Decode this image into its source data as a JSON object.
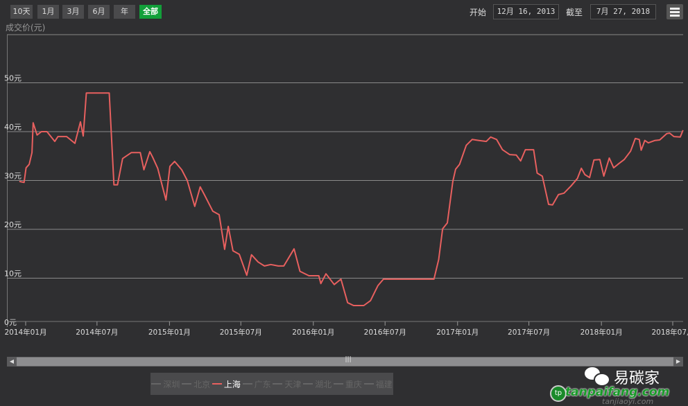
{
  "toolbar": {
    "range_buttons": [
      {
        "label": "10天"
      },
      {
        "label": "1月"
      },
      {
        "label": "3月"
      },
      {
        "label": "6月"
      },
      {
        "label": "年"
      },
      {
        "label": "全部",
        "active": true
      }
    ],
    "start_label": "开始",
    "start_value": "12月 16, 2013",
    "end_label": "截至",
    "end_value": "7月 27, 2018",
    "menu_icon": "hamburger-menu-icon"
  },
  "legend": [
    {
      "label": "深圳",
      "visible": false
    },
    {
      "label": "北京",
      "visible": false
    },
    {
      "label": "上海",
      "visible": true
    },
    {
      "label": "广东",
      "visible": false
    },
    {
      "label": "天津",
      "visible": false
    },
    {
      "label": "湖北",
      "visible": false
    },
    {
      "label": "重庆",
      "visible": false
    },
    {
      "label": "福建",
      "visible": false
    }
  ],
  "watermark": {
    "brand": "易碳家",
    "site": "tanpaifang.com",
    "site2": "tanjiaoyi.com"
  },
  "colors": {
    "series": "#e8605f",
    "active_button": "#12a03a",
    "background": "#2f2f31"
  },
  "chart_data": {
    "type": "line",
    "ylabel": "成交价(元)",
    "ylim": [
      0,
      55
    ],
    "yticks": [
      "0元",
      "10元",
      "20元",
      "30元",
      "40元",
      "50元"
    ],
    "xticks": [
      "2014年01月",
      "2014年07月",
      "2015年01月",
      "2015年07月",
      "2016年01月",
      "2016年07月",
      "2017年01月",
      "2017年07月",
      "2018年01月",
      "2018年07月"
    ],
    "grid": true,
    "legend_position": "bottom",
    "series": [
      {
        "name": "上海",
        "points": [
          [
            "2013-12-16",
            29.8
          ],
          [
            "2013-12-28",
            29.6
          ],
          [
            "2014-01-02",
            32.6
          ],
          [
            "2014-01-10",
            33.3
          ],
          [
            "2014-01-17",
            35.7
          ],
          [
            "2014-01-20",
            41.8
          ],
          [
            "2014-01-30",
            39.3
          ],
          [
            "2014-02-10",
            40
          ],
          [
            "2014-02-24",
            40
          ],
          [
            "2014-03-07",
            38.9
          ],
          [
            "2014-03-16",
            38
          ],
          [
            "2014-03-24",
            39
          ],
          [
            "2014-04-15",
            39
          ],
          [
            "2014-05-06",
            37.6
          ],
          [
            "2014-05-20",
            42
          ],
          [
            "2014-05-27",
            39.1
          ],
          [
            "2014-06-04",
            47.9
          ],
          [
            "2014-08-01",
            47.9
          ],
          [
            "2014-08-13",
            29.1
          ],
          [
            "2014-08-22",
            29.1
          ],
          [
            "2014-09-04",
            34.5
          ],
          [
            "2014-09-26",
            35.7
          ],
          [
            "2014-10-19",
            35.7
          ],
          [
            "2014-10-28",
            32.2
          ],
          [
            "2014-11-12",
            35.9
          ],
          [
            "2014-11-19",
            34.8
          ],
          [
            "2014-12-02",
            32.5
          ],
          [
            "2014-12-23",
            26
          ],
          [
            "2015-01-02",
            32.9
          ],
          [
            "2015-01-14",
            33.9
          ],
          [
            "2015-02-01",
            32.2
          ],
          [
            "2015-02-15",
            30
          ],
          [
            "2015-03-06",
            24.7
          ],
          [
            "2015-03-20",
            28.7
          ],
          [
            "2015-03-31",
            27
          ],
          [
            "2015-04-21",
            23.7
          ],
          [
            "2015-05-07",
            23
          ],
          [
            "2015-05-21",
            15.9
          ],
          [
            "2015-05-30",
            20.6
          ],
          [
            "2015-06-11",
            15.6
          ],
          [
            "2015-06-27",
            14.9
          ],
          [
            "2015-07-16",
            10.6
          ],
          [
            "2015-07-28",
            14.8
          ],
          [
            "2015-08-14",
            13.3
          ],
          [
            "2015-08-30",
            12.5
          ],
          [
            "2015-09-15",
            12.8
          ],
          [
            "2015-10-04",
            12.5
          ],
          [
            "2015-10-18",
            12.5
          ],
          [
            "2015-11-13",
            16
          ],
          [
            "2015-11-28",
            11.4
          ],
          [
            "2015-12-21",
            10.5
          ],
          [
            "2016-01-15",
            10.5
          ],
          [
            "2016-01-20",
            8.9
          ],
          [
            "2016-02-02",
            10.9
          ],
          [
            "2016-02-23",
            8.7
          ],
          [
            "2016-03-11",
            9.8
          ],
          [
            "2016-03-28",
            5
          ],
          [
            "2016-04-12",
            4.4
          ],
          [
            "2016-05-08",
            4.4
          ],
          [
            "2016-05-25",
            5.4
          ],
          [
            "2016-06-13",
            8.5
          ],
          [
            "2016-06-27",
            9.8
          ],
          [
            "2016-11-02",
            9.8
          ],
          [
            "2016-11-14",
            13.8
          ],
          [
            "2016-11-24",
            20.1
          ],
          [
            "2016-12-06",
            21.3
          ],
          [
            "2016-12-20",
            29.8
          ],
          [
            "2016-12-27",
            32.3
          ],
          [
            "2017-01-06",
            33.3
          ],
          [
            "2017-01-23",
            37.2
          ],
          [
            "2017-02-07",
            38.4
          ],
          [
            "2017-02-24",
            38.2
          ],
          [
            "2017-03-15",
            38
          ],
          [
            "2017-03-26",
            38.9
          ],
          [
            "2017-04-10",
            38.4
          ],
          [
            "2017-04-25",
            36.3
          ],
          [
            "2017-05-13",
            35.3
          ],
          [
            "2017-05-30",
            35.2
          ],
          [
            "2017-06-10",
            34
          ],
          [
            "2017-06-22",
            36.3
          ],
          [
            "2017-07-13",
            36.3
          ],
          [
            "2017-07-22",
            31.5
          ],
          [
            "2017-08-04",
            30.9
          ],
          [
            "2017-08-20",
            25.1
          ],
          [
            "2017-08-30",
            25
          ],
          [
            "2017-09-14",
            27.1
          ],
          [
            "2017-09-28",
            27.4
          ],
          [
            "2017-10-16",
            28.9
          ],
          [
            "2017-11-01",
            30.4
          ],
          [
            "2017-11-11",
            32.5
          ],
          [
            "2017-11-20",
            31.2
          ],
          [
            "2017-12-02",
            30.6
          ],
          [
            "2017-12-13",
            34.2
          ],
          [
            "2017-12-28",
            34.3
          ],
          [
            "2018-01-07",
            30.9
          ],
          [
            "2018-01-21",
            34.6
          ],
          [
            "2018-02-01",
            32.6
          ],
          [
            "2018-02-15",
            33.5
          ],
          [
            "2018-02-28",
            34.3
          ],
          [
            "2018-03-16",
            36
          ],
          [
            "2018-03-28",
            38.6
          ],
          [
            "2018-04-07",
            38.4
          ],
          [
            "2018-04-12",
            36.2
          ],
          [
            "2018-04-21",
            38.2
          ],
          [
            "2018-04-30",
            37.7
          ],
          [
            "2018-05-17",
            38.2
          ],
          [
            "2018-05-29",
            38.3
          ],
          [
            "2018-06-16",
            39.6
          ],
          [
            "2018-06-23",
            39.7
          ],
          [
            "2018-07-04",
            39
          ],
          [
            "2018-07-20",
            38.9
          ],
          [
            "2018-07-27",
            40.3
          ]
        ]
      }
    ]
  }
}
